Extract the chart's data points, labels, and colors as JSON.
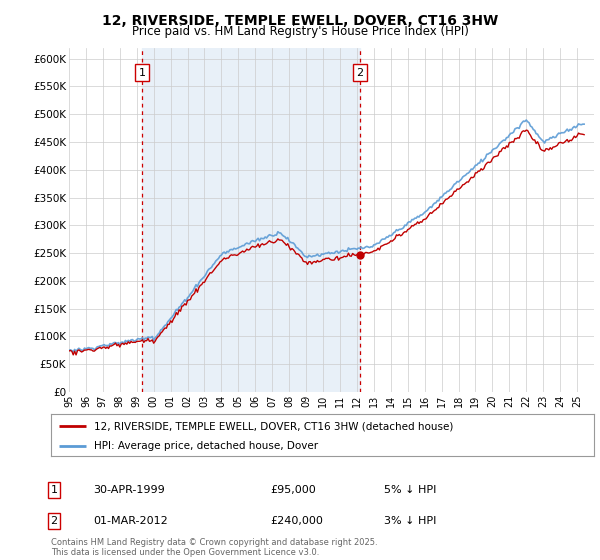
{
  "title": "12, RIVERSIDE, TEMPLE EWELL, DOVER, CT16 3HW",
  "subtitle": "Price paid vs. HM Land Registry's House Price Index (HPI)",
  "ylim": [
    0,
    620000
  ],
  "yticks": [
    0,
    50000,
    100000,
    150000,
    200000,
    250000,
    300000,
    350000,
    400000,
    450000,
    500000,
    550000,
    600000
  ],
  "ytick_labels": [
    "£0",
    "£50K",
    "£100K",
    "£150K",
    "£200K",
    "£250K",
    "£300K",
    "£350K",
    "£400K",
    "£450K",
    "£500K",
    "£550K",
    "£600K"
  ],
  "hpi_color": "#5b9bd5",
  "hpi_fill_color": "#ddeeff",
  "price_color": "#c00000",
  "vline_color": "#cc0000",
  "vline_style": "--",
  "bg_shade_color": "#e8f0f8",
  "marker1_year": 1999.33,
  "marker2_year": 2012.17,
  "marker1_label": "1",
  "marker2_label": "2",
  "marker1_price": 95000,
  "marker2_price": 240000,
  "sale1_date": "30-APR-1999",
  "sale1_price": "£95,000",
  "sale1_hpi": "5% ↓ HPI",
  "sale2_date": "01-MAR-2012",
  "sale2_price": "£240,000",
  "sale2_hpi": "3% ↓ HPI",
  "legend_line1": "12, RIVERSIDE, TEMPLE EWELL, DOVER, CT16 3HW (detached house)",
  "legend_line2": "HPI: Average price, detached house, Dover",
  "footnote": "Contains HM Land Registry data © Crown copyright and database right 2025.\nThis data is licensed under the Open Government Licence v3.0.",
  "background_color": "#ffffff",
  "grid_color": "#cccccc",
  "xstart": 1995,
  "xend": 2026
}
